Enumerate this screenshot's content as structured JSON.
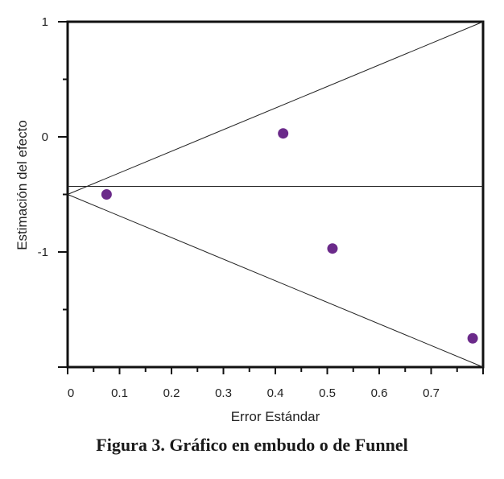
{
  "chart_data": {
    "type": "scatter",
    "title": "",
    "xlabel": "Error Estándar",
    "ylabel": "Estimación del efecto",
    "xlim": [
      0,
      0.8
    ],
    "ylim": [
      -2,
      1
    ],
    "x_ticks": [
      "0",
      "0.1",
      "0.2",
      "0.3",
      "0.4",
      "0.5",
      "0.6",
      "0.7"
    ],
    "y_ticks": [
      "1",
      "0",
      "-1"
    ],
    "grid": false,
    "point_color": "#6b2a8a",
    "points": [
      {
        "x": 0.075,
        "y": -0.5
      },
      {
        "x": 0.415,
        "y": 0.03
      },
      {
        "x": 0.51,
        "y": -0.97
      },
      {
        "x": 0.78,
        "y": -1.75
      }
    ],
    "reference_lines": {
      "funnel_apex": {
        "x": 0,
        "y": -0.5
      },
      "funnel_upper_end": {
        "x": 0.8,
        "y": 1
      },
      "funnel_lower_end": {
        "x": 0.8,
        "y": -2
      },
      "horizontal_y": -0.43
    }
  },
  "caption": "Figura 3. Gráfico en embudo o  de Funnel"
}
